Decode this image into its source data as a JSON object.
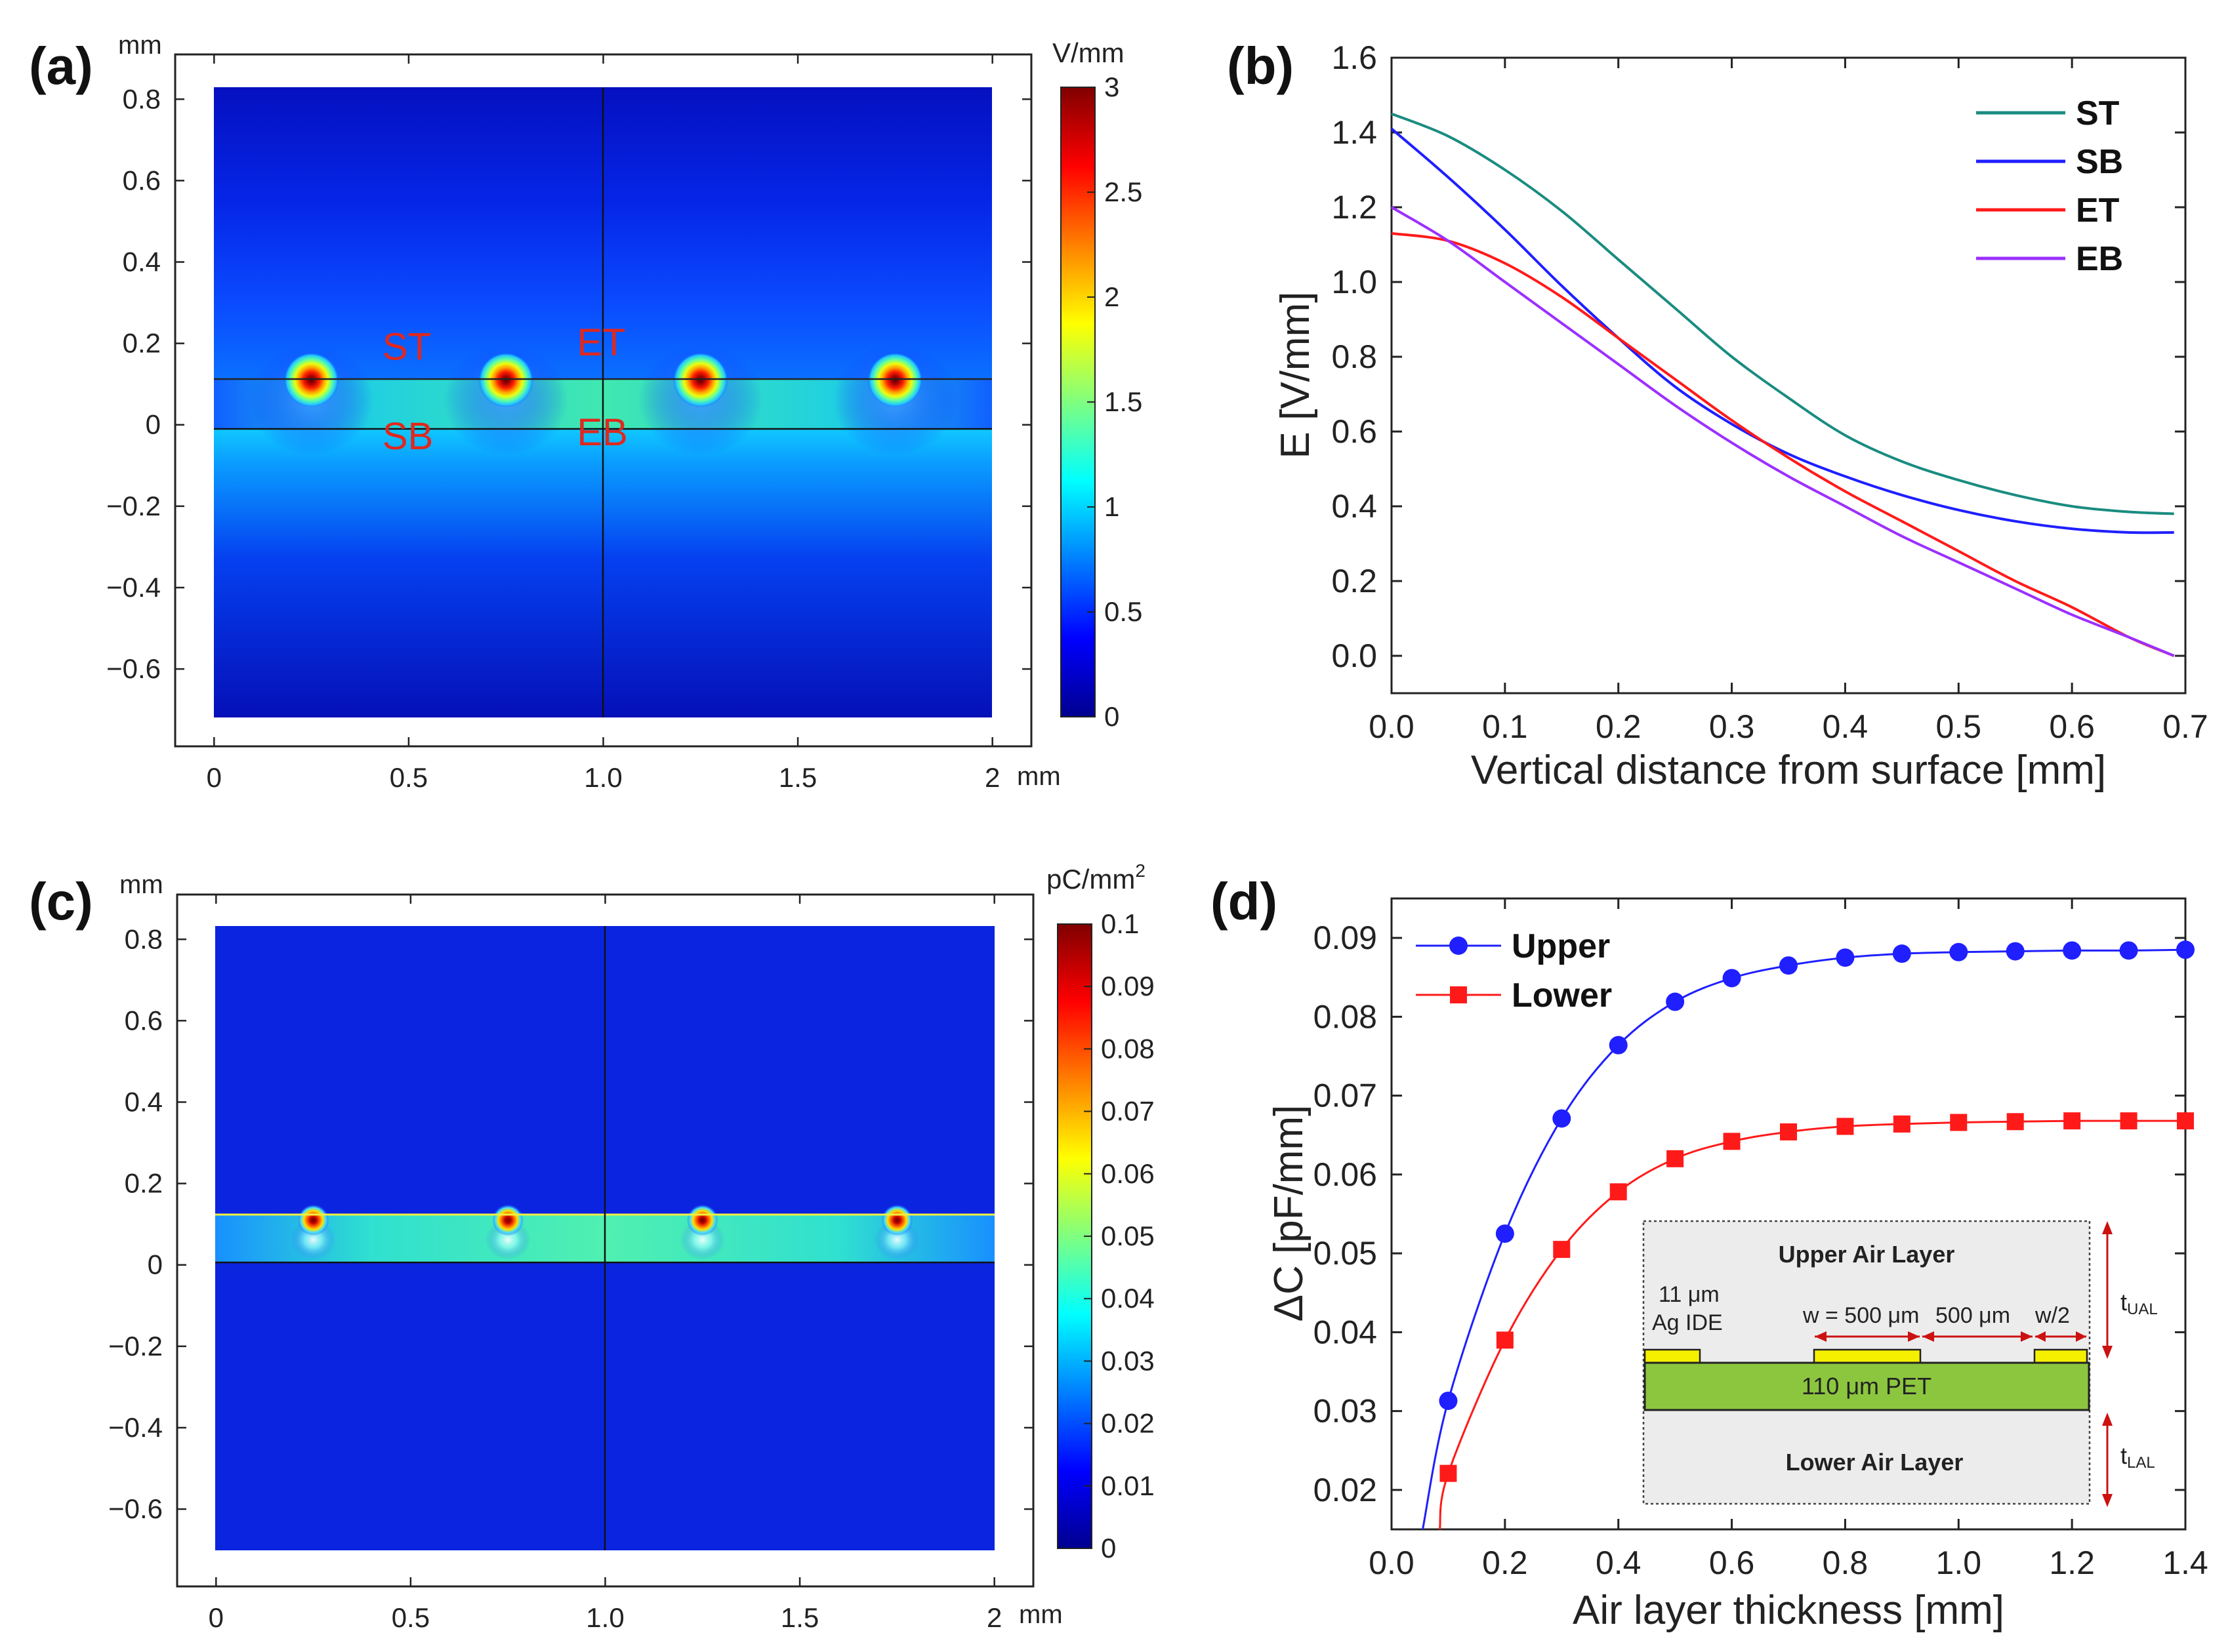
{
  "colors": {
    "teal": "#1a8c80",
    "blue": "#1f1fff",
    "red": "#ff1a1a",
    "violet": "#9b30ff",
    "fieldRed": "#e0281e",
    "inkBlack": "#111111"
  },
  "chart_data": [
    {
      "panel": "(a)",
      "type": "heatmap",
      "title": "",
      "unit_label": "V/mm",
      "x_unit": "mm",
      "y_unit": "mm",
      "xticks": [
        "0",
        "0.5",
        "1.0",
        "1.5",
        "2"
      ],
      "xtick_values": [
        0,
        0.5,
        1,
        1.5,
        2
      ],
      "yticks": [
        "0.8",
        "0.6",
        "0.4",
        "0.2",
        "0",
        "−0.2",
        "−0.4",
        "−0.6"
      ],
      "ytick_values": [
        0.8,
        0.6,
        0.4,
        0.2,
        0,
        -0.2,
        -0.4,
        -0.6
      ],
      "xlim": [
        -0.1,
        2.1
      ],
      "ylim": [
        -0.79,
        0.91
      ],
      "domain_x": [
        0,
        2
      ],
      "domain_y": [
        -0.7,
        0.82
      ],
      "pet_layer_y": [
        0,
        0.11
      ],
      "electrode_x": [
        0.25,
        0.75,
        1.25,
        1.75
      ],
      "colorbar_ticks": [
        "3",
        "2.5",
        "2",
        "1.5",
        "1",
        "0.5",
        "0"
      ],
      "colorbar_values": [
        3,
        2.5,
        2,
        1.5,
        1,
        0.5,
        0
      ],
      "colorbar_range": [
        0,
        3
      ],
      "annotations": [
        {
          "text": "ST",
          "x": 0.5,
          "y": 0.16
        },
        {
          "text": "ET",
          "x": 1.0,
          "y": 0.17
        },
        {
          "text": "SB",
          "x": 0.5,
          "y": -0.06
        },
        {
          "text": "EB",
          "x": 1.0,
          "y": -0.05
        }
      ]
    },
    {
      "panel": "(b)",
      "type": "line",
      "title": "",
      "xlabel": "Vertical distance from surface [mm]",
      "ylabel": "E [V/mm]",
      "xlim": [
        0,
        0.7
      ],
      "ylim": [
        -0.1,
        1.6
      ],
      "xticks": [
        "0.0",
        "0.1",
        "0.2",
        "0.3",
        "0.4",
        "0.5",
        "0.6",
        "0.7"
      ],
      "xtick_values": [
        0,
        0.1,
        0.2,
        0.3,
        0.4,
        0.5,
        0.6,
        0.7
      ],
      "yticks": [
        "0.0",
        "0.2",
        "0.4",
        "0.6",
        "0.8",
        "1.0",
        "1.2",
        "1.4",
        "1.6"
      ],
      "ytick_values": [
        0,
        0.2,
        0.4,
        0.6,
        0.8,
        1.0,
        1.2,
        1.4,
        1.6
      ],
      "legend_position": "top-right",
      "x": [
        0,
        0.05,
        0.1,
        0.15,
        0.2,
        0.25,
        0.3,
        0.35,
        0.4,
        0.45,
        0.5,
        0.55,
        0.6,
        0.65,
        0.69
      ],
      "series": [
        {
          "name": "ST",
          "color": "#1a8c80",
          "values": [
            1.45,
            1.39,
            1.3,
            1.19,
            1.06,
            0.93,
            0.8,
            0.69,
            0.59,
            0.52,
            0.47,
            0.43,
            0.4,
            0.385,
            0.38
          ]
        },
        {
          "name": "SB",
          "color": "#1f1fff",
          "values": [
            1.41,
            1.28,
            1.14,
            0.99,
            0.85,
            0.72,
            0.62,
            0.54,
            0.48,
            0.43,
            0.39,
            0.36,
            0.34,
            0.33,
            0.33
          ]
        },
        {
          "name": "ET",
          "color": "#ff1a1a",
          "values": [
            1.13,
            1.11,
            1.05,
            0.96,
            0.85,
            0.74,
            0.63,
            0.53,
            0.44,
            0.36,
            0.28,
            0.2,
            0.13,
            0.05,
            0.0
          ]
        },
        {
          "name": "EB",
          "color": "#9b30ff",
          "values": [
            1.2,
            1.11,
            1.0,
            0.89,
            0.78,
            0.67,
            0.57,
            0.48,
            0.4,
            0.32,
            0.25,
            0.18,
            0.11,
            0.05,
            0.0
          ]
        }
      ]
    },
    {
      "panel": "(c)",
      "type": "heatmap",
      "title": "",
      "unit_label": "pC/mm",
      "unit_sup": "2",
      "x_unit": "mm",
      "y_unit": "mm",
      "xticks": [
        "0",
        "0.5",
        "1.0",
        "1.5",
        "2"
      ],
      "xtick_values": [
        0,
        0.5,
        1,
        1.5,
        2
      ],
      "yticks": [
        "0.8",
        "0.6",
        "0.4",
        "0.2",
        "0",
        "−0.2",
        "−0.4",
        "−0.6"
      ],
      "ytick_values": [
        0.8,
        0.6,
        0.4,
        0.2,
        0,
        -0.2,
        -0.4,
        -0.6
      ],
      "xlim": [
        -0.1,
        2.1
      ],
      "ylim": [
        -0.79,
        0.91
      ],
      "domain_x": [
        0,
        2
      ],
      "domain_y": [
        -0.7,
        0.82
      ],
      "pet_layer_y": [
        0,
        0.11
      ],
      "electrode_x": [
        0.25,
        0.75,
        1.25,
        1.75
      ],
      "colorbar_ticks": [
        "0.1",
        "0.09",
        "0.08",
        "0.07",
        "0.06",
        "0.05",
        "0.04",
        "0.03",
        "0.02",
        "0.01",
        "0"
      ],
      "colorbar_values": [
        0.1,
        0.09,
        0.08,
        0.07,
        0.06,
        0.05,
        0.04,
        0.03,
        0.02,
        0.01,
        0
      ],
      "colorbar_range": [
        0,
        0.1
      ]
    },
    {
      "panel": "(d)",
      "type": "line",
      "title": "",
      "xlabel": "Air layer thickness [mm]",
      "ylabel": "ΔC [pF/mm]",
      "xlim": [
        0,
        1.4
      ],
      "ylim": [
        0.015,
        0.095
      ],
      "xticks": [
        "0.0",
        "0.2",
        "0.4",
        "0.6",
        "0.8",
        "1.0",
        "1.2",
        "1.4"
      ],
      "xtick_values": [
        0,
        0.2,
        0.4,
        0.6,
        0.8,
        1.0,
        1.2,
        1.4
      ],
      "yticks": [
        "0.02",
        "0.03",
        "0.04",
        "0.05",
        "0.06",
        "0.07",
        "0.08",
        "0.09"
      ],
      "ytick_values": [
        0.02,
        0.03,
        0.04,
        0.05,
        0.06,
        0.07,
        0.08,
        0.09
      ],
      "legend_position": "top-left",
      "x": [
        0.1,
        0.2,
        0.3,
        0.4,
        0.5,
        0.6,
        0.7,
        0.8,
        0.9,
        1.0,
        1.1,
        1.2,
        1.3,
        1.4
      ],
      "series": [
        {
          "name": "Upper",
          "color": "#1f1fff",
          "marker": "circle",
          "start": [
            0.055,
            0.015
          ],
          "values": [
            0.0313,
            0.0525,
            0.0671,
            0.0764,
            0.0819,
            0.0849,
            0.0865,
            0.0875,
            0.088,
            0.0882,
            0.0883,
            0.0884,
            0.0884,
            0.0885
          ]
        },
        {
          "name": "Lower",
          "color": "#ff1a1a",
          "marker": "square",
          "start": [
            0.085,
            0.015
          ],
          "values": [
            0.0221,
            0.039,
            0.0505,
            0.0578,
            0.062,
            0.0642,
            0.0654,
            0.0661,
            0.0664,
            0.0666,
            0.0667,
            0.0668,
            0.0668,
            0.0668
          ]
        }
      ],
      "inset": {
        "upper": "Upper Air Layer",
        "lower": "Lower Air Layer",
        "pet": "110 μm PET",
        "ide_line1": "11 μm",
        "ide_line2": "Ag IDE",
        "w": "w = 500 μm",
        "gap": "500 μm",
        "half": "w/2",
        "t_ual": "t",
        "t_ual_sub": "UAL",
        "t_lal": "t",
        "t_lal_sub": "LAL"
      }
    }
  ]
}
